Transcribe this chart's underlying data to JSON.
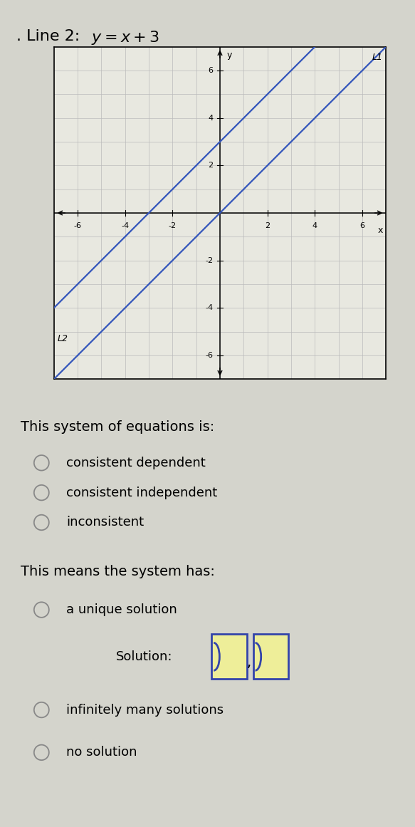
{
  "title_prefix": ". Line 2: ",
  "title_equation": "y = x + 3",
  "line1_slope": 1,
  "line1_intercept": 0,
  "line2_slope": 1,
  "line2_intercept": 3,
  "line_color": "#3355bb",
  "line_width": 1.6,
  "xlim": [
    -7,
    7
  ],
  "ylim": [
    -7,
    7
  ],
  "xticks": [
    -6,
    -4,
    -2,
    2,
    4,
    6
  ],
  "yticks": [
    -6,
    -4,
    -2,
    2,
    4,
    6
  ],
  "grid_color": "#bbbbbb",
  "grid_linewidth": 0.5,
  "label_L1": "L1",
  "label_L2": "L2",
  "graph_bg": "#e8e8e0",
  "page_bg": "#d4d4cc",
  "question1": "This system of equations is:",
  "options1": [
    "consistent dependent",
    "consistent independent",
    "inconsistent"
  ],
  "question2": "This means the system has:",
  "option_unique": "a unique solution",
  "solution_label": "Solution:",
  "option_infinite": "infinitely many solutions",
  "option_none": "no solution",
  "radio_color": "#888888",
  "box_edge_color": "#3344aa",
  "box_fill_color": "#eeee99",
  "font_size_title": 16,
  "font_size_question": 14,
  "font_size_option": 13,
  "font_size_axis": 8
}
